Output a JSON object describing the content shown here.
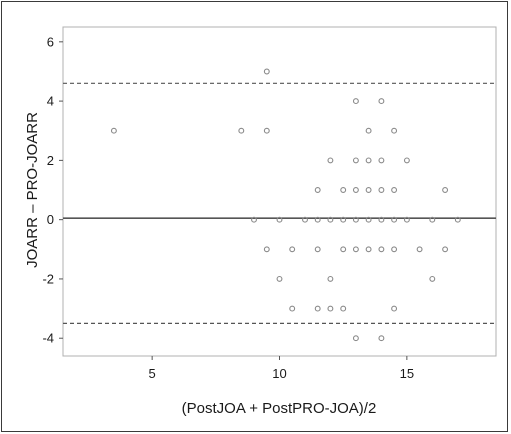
{
  "chart_data": {
    "type": "scatter",
    "title": "",
    "xlabel": "(PostJOA + PostPRO-JOA)/2",
    "ylabel": "JOARR – PRO-JOARR",
    "xlim": [
      1.5,
      18.5
    ],
    "ylim": [
      -4.6,
      6.5
    ],
    "xticks": [
      5,
      10,
      15
    ],
    "yticks": [
      -4,
      -2,
      0,
      2,
      4,
      6
    ],
    "grid": false,
    "legend": "none",
    "reference_lines": [
      {
        "kind": "mean",
        "y": 0.05,
        "style": "solid"
      },
      {
        "kind": "upper_limit",
        "y": 4.6,
        "style": "dashed"
      },
      {
        "kind": "lower_limit",
        "y": -3.5,
        "style": "dashed"
      }
    ],
    "colors": {
      "points": "#8a8a8a",
      "lines": "#555555",
      "frame": "#b0b0b0"
    },
    "series": [
      {
        "points": [
          [
            3.5,
            3
          ],
          [
            8.5,
            3
          ],
          [
            9.5,
            3
          ],
          [
            9.5,
            5
          ],
          [
            9,
            0
          ],
          [
            9.5,
            -1
          ],
          [
            10,
            0
          ],
          [
            10,
            -2
          ],
          [
            10.5,
            -1
          ],
          [
            10.5,
            -3
          ],
          [
            11,
            0
          ],
          [
            11.5,
            1
          ],
          [
            11.5,
            0
          ],
          [
            11.5,
            -1
          ],
          [
            11.5,
            -3
          ],
          [
            12,
            2
          ],
          [
            12,
            0
          ],
          [
            12,
            -2
          ],
          [
            12,
            -3
          ],
          [
            12.5,
            1
          ],
          [
            12.5,
            0
          ],
          [
            12.5,
            -1
          ],
          [
            12.5,
            -3
          ],
          [
            13,
            4
          ],
          [
            13,
            2
          ],
          [
            13,
            1
          ],
          [
            13,
            0
          ],
          [
            13,
            -1
          ],
          [
            13,
            -4
          ],
          [
            13.5,
            3
          ],
          [
            13.5,
            2
          ],
          [
            13.5,
            1
          ],
          [
            13.5,
            0
          ],
          [
            13.5,
            -1
          ],
          [
            14,
            4
          ],
          [
            14,
            2
          ],
          [
            14,
            1
          ],
          [
            14,
            0
          ],
          [
            14,
            -1
          ],
          [
            14,
            -4
          ],
          [
            14.5,
            3
          ],
          [
            14.5,
            1
          ],
          [
            14.5,
            0
          ],
          [
            14.5,
            -1
          ],
          [
            14.5,
            -3
          ],
          [
            15,
            2
          ],
          [
            15,
            0
          ],
          [
            15.5,
            -1
          ],
          [
            16,
            0
          ],
          [
            16,
            -2
          ],
          [
            16.5,
            1
          ],
          [
            16.5,
            -1
          ],
          [
            17,
            0
          ]
        ]
      }
    ]
  }
}
